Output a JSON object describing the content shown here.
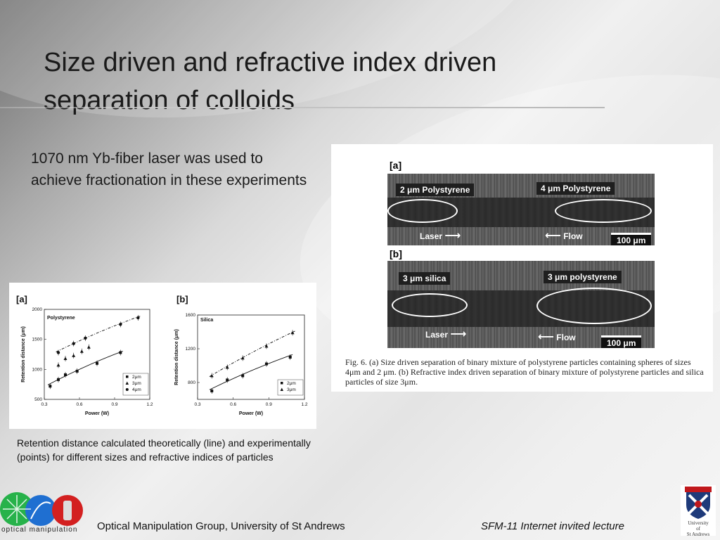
{
  "slide": {
    "title_line1": "Size driven and refractive index driven",
    "title_line2": "separation of colloids",
    "intro_text": "1070 nm Yb-fiber laser was used to achieve fractionation in these experiments",
    "graph_caption": "Retention distance calculated theoretically (line)  and experimentally (points) for different sizes and refractive indices of particles",
    "footer_left": "Optical Manipulation Group, University of St Andrews",
    "footer_right": "SFM-11 Internet invited lecture",
    "logo_left_text": "optical  manipulation",
    "crest_text_line1": "University",
    "crest_text_line2": "of",
    "crest_text_line3": "St Andrews"
  },
  "figure": {
    "panel_a": "[a]",
    "panel_b": "[b]",
    "a_left_tag": "2 μm Polystyrene",
    "a_right_tag": "4 μm Polystyrene",
    "a_laser": "Laser",
    "a_flow": "Flow",
    "a_scale": "100 μm",
    "b_left_tag": "3 μm silica",
    "b_right_tag": "3 μm polystyrene",
    "b_laser": "Laser",
    "b_flow": "Flow",
    "b_scale": "100 μm",
    "caption": "Fig. 6. (a) Size driven separation of binary mixture of polystyrene particles containing spheres of sizes 4μm and 2 μm. (b) Refractive index driven separation of binary mixture of polystyrene particles and silica particles of size 3μm."
  },
  "chart_data": [
    {
      "type": "scatter",
      "panel_label": "[a]",
      "title": "Polystyrene",
      "xlabel": "Power (W)",
      "ylabel": "Retention distance (μm)",
      "xlim": [
        0.3,
        1.2
      ],
      "ylim": [
        500,
        2000
      ],
      "xticks": [
        "0.3",
        "0.6",
        "0.9",
        "1.2"
      ],
      "yticks": [
        "500",
        "1000",
        "1500",
        "2000"
      ],
      "legend_position": "bottom-right",
      "series": [
        {
          "name": "2μm",
          "marker": "square",
          "x": [
            0.35,
            0.42,
            0.48,
            0.58,
            0.75,
            0.95
          ],
          "y": [
            720,
            830,
            910,
            970,
            1100,
            1280
          ],
          "fit": "solid"
        },
        {
          "name": "3μm",
          "marker": "triangle",
          "x": [
            0.42,
            0.48,
            0.55,
            0.62,
            0.68
          ],
          "y": [
            1070,
            1180,
            1230,
            1300,
            1370
          ],
          "fit": "none"
        },
        {
          "name": "4μm",
          "marker": "circle",
          "x": [
            0.42,
            0.55,
            0.65,
            0.95,
            1.1
          ],
          "y": [
            1280,
            1430,
            1520,
            1750,
            1860
          ],
          "fit": "dashdot"
        }
      ]
    },
    {
      "type": "scatter",
      "panel_label": "[b]",
      "title": "Silica",
      "xlabel": "Power (W)",
      "ylabel": "Retention distance (μm)",
      "xlim": [
        0.3,
        1.2
      ],
      "ylim": [
        600,
        1600
      ],
      "xticks": [
        "0.3",
        "0.6",
        "0.9",
        "1.2"
      ],
      "yticks": [
        "800",
        "1200",
        "1600"
      ],
      "legend_position": "bottom-right",
      "series": [
        {
          "name": "2μm",
          "marker": "square",
          "x": [
            0.42,
            0.55,
            0.68,
            0.88,
            1.08
          ],
          "y": [
            700,
            830,
            880,
            1020,
            1100
          ],
          "fit": "solid"
        },
        {
          "name": "3μm",
          "marker": "triangle",
          "x": [
            0.42,
            0.55,
            0.68,
            0.88,
            1.1
          ],
          "y": [
            880,
            980,
            1090,
            1230,
            1390
          ],
          "fit": "dashdot"
        }
      ]
    }
  ],
  "colors": {
    "title": "#1a1a1a",
    "channel_dark": "#3a3a3a",
    "logo_green": "#27b24a",
    "logo_blue": "#1f6fd1",
    "logo_red": "#d32020",
    "crest_red": "#c0181c",
    "crest_blue": "#1e3a7a"
  }
}
